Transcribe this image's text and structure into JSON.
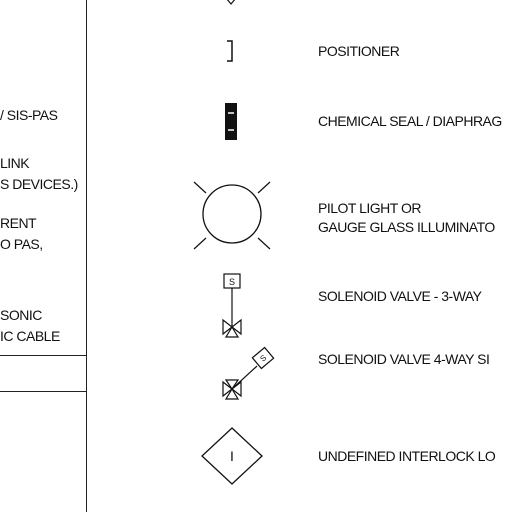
{
  "left_column": {
    "lines": [
      "/ SIS-PAS",
      "LINK",
      "S DEVICES.)",
      "RENT",
      "O PAS,",
      "SONIC",
      "IC CABLE"
    ]
  },
  "legend": [
    {
      "symbol": "positioner-symbol",
      "text": [
        "POSITIONER"
      ]
    },
    {
      "symbol": "chemical-seal-symbol",
      "text": [
        "CHEMICAL SEAL / DIAPHRAG"
      ]
    },
    {
      "symbol": "pilot-light-symbol",
      "text": [
        "PILOT LIGHT OR",
        "GAUGE GLASS ILLUMINATO"
      ]
    },
    {
      "symbol": "solenoid-3way-symbol",
      "text": [
        "SOLENOID VALVE - 3-WAY"
      ],
      "tag": "S"
    },
    {
      "symbol": "solenoid-4way-symbol",
      "text": [
        "SOLENOID VALVE 4-WAY SI"
      ],
      "tag": "S"
    },
    {
      "symbol": "interlock-symbol",
      "text": [
        "UNDEFINED INTERLOCK LO"
      ],
      "tag": "I"
    }
  ]
}
